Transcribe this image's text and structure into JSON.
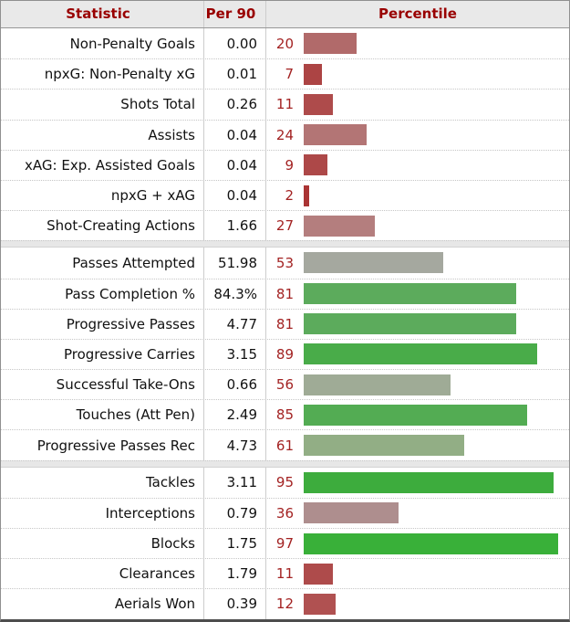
{
  "table": {
    "headers": {
      "statistic": "Statistic",
      "per90": "Per 90",
      "percentile": "Percentile"
    },
    "header_text_color": "#990000",
    "header_background": "#e9e9e9",
    "percentile_number_color": "#a32222",
    "groups": [
      {
        "rows": [
          {
            "stat": "Non-Penalty Goals",
            "per90": "0.00",
            "percentile": 20,
            "bar_color": "#b16a6a"
          },
          {
            "stat": "npxG: Non-Penalty xG",
            "per90": "0.01",
            "percentile": 7,
            "bar_color": "#ac4444"
          },
          {
            "stat": "Shots Total",
            "per90": "0.26",
            "percentile": 11,
            "bar_color": "#ae4b4b"
          },
          {
            "stat": "Assists",
            "per90": "0.04",
            "percentile": 24,
            "bar_color": "#b37575"
          },
          {
            "stat": "xAG: Exp. Assisted Goals",
            "per90": "0.04",
            "percentile": 9,
            "bar_color": "#ad4848"
          },
          {
            "stat": "npxG + xAG",
            "per90": "0.04",
            "percentile": 2,
            "bar_color": "#aa3434"
          },
          {
            "stat": "Shot-Creating Actions",
            "per90": "1.66",
            "percentile": 27,
            "bar_color": "#b47e7e"
          }
        ]
      },
      {
        "rows": [
          {
            "stat": "Passes Attempted",
            "per90": "51.98",
            "percentile": 53,
            "bar_color": "#a5a89f"
          },
          {
            "stat": "Pass Completion %",
            "per90": "84.3%",
            "percentile": 81,
            "bar_color": "#5cab5c"
          },
          {
            "stat": "Progressive Passes",
            "per90": "4.77",
            "percentile": 81,
            "bar_color": "#5cab5c"
          },
          {
            "stat": "Progressive Carries",
            "per90": "3.15",
            "percentile": 89,
            "bar_color": "#49ac49"
          },
          {
            "stat": "Successful Take-Ons",
            "per90": "0.66",
            "percentile": 56,
            "bar_color": "#9fab96"
          },
          {
            "stat": "Touches (Att Pen)",
            "per90": "2.49",
            "percentile": 85,
            "bar_color": "#53ac53"
          },
          {
            "stat": "Progressive Passes Rec",
            "per90": "4.73",
            "percentile": 61,
            "bar_color": "#92ae85"
          }
        ]
      },
      {
        "rows": [
          {
            "stat": "Tackles",
            "per90": "3.11",
            "percentile": 95,
            "bar_color": "#3dac3d"
          },
          {
            "stat": "Interceptions",
            "per90": "0.79",
            "percentile": 36,
            "bar_color": "#ae8e8e"
          },
          {
            "stat": "Blocks",
            "per90": "1.75",
            "percentile": 97,
            "bar_color": "#39b039"
          },
          {
            "stat": "Clearances",
            "per90": "1.79",
            "percentile": 11,
            "bar_color": "#ae4b4b"
          },
          {
            "stat": "Aerials Won",
            "per90": "0.39",
            "percentile": 12,
            "bar_color": "#b05151"
          }
        ]
      }
    ]
  },
  "chart_data": {
    "type": "bar",
    "orientation": "horizontal",
    "title": "",
    "columns": [
      "Statistic",
      "Per 90",
      "Percentile"
    ],
    "categories": [
      "Non-Penalty Goals",
      "npxG: Non-Penalty xG",
      "Shots Total",
      "Assists",
      "xAG: Exp. Assisted Goals",
      "npxG + xAG",
      "Shot-Creating Actions",
      "Passes Attempted",
      "Pass Completion %",
      "Progressive Passes",
      "Progressive Carries",
      "Successful Take-Ons",
      "Touches (Att Pen)",
      "Progressive Passes Rec",
      "Tackles",
      "Interceptions",
      "Blocks",
      "Clearances",
      "Aerials Won"
    ],
    "series": [
      {
        "name": "Per 90",
        "values": [
          "0.00",
          "0.01",
          "0.26",
          "0.04",
          "0.04",
          "0.04",
          "1.66",
          "51.98",
          "84.3%",
          "4.77",
          "3.15",
          "0.66",
          "2.49",
          "4.73",
          "3.11",
          "0.79",
          "1.75",
          "1.79",
          "0.39"
        ]
      },
      {
        "name": "Percentile",
        "values": [
          20,
          7,
          11,
          24,
          9,
          2,
          27,
          53,
          81,
          81,
          89,
          56,
          85,
          61,
          95,
          36,
          97,
          11,
          12
        ]
      }
    ],
    "xlim": [
      0,
      100
    ],
    "grid": false,
    "legend": false,
    "group_breaks_after": [
      "Shot-Creating Actions",
      "Progressive Passes Rec"
    ]
  }
}
